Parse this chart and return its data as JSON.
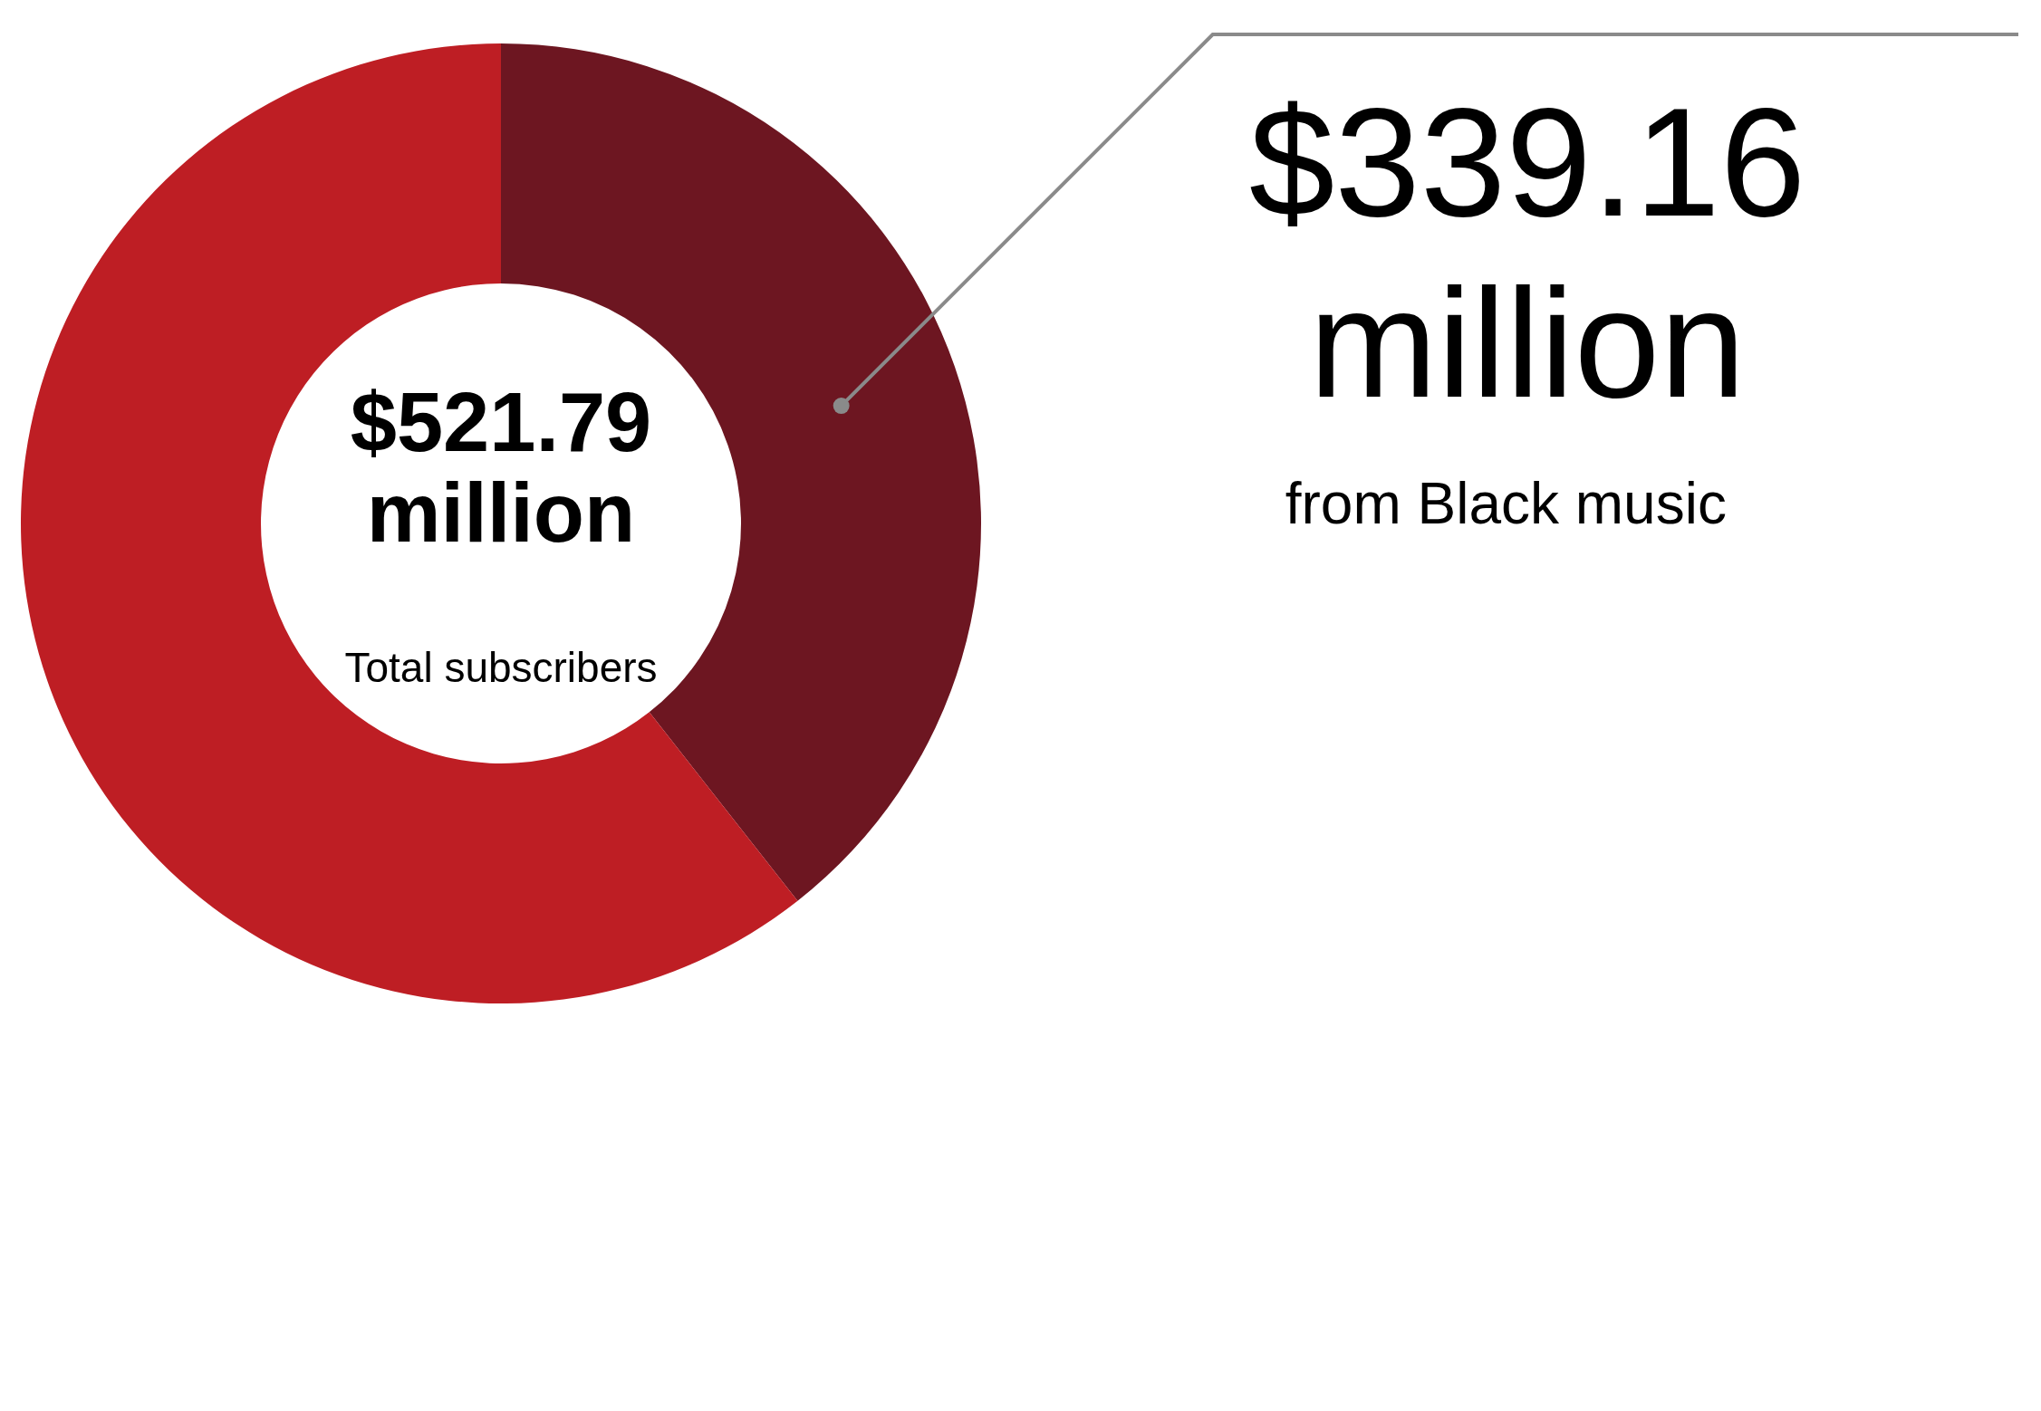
{
  "chart_data": {
    "type": "donut",
    "categories": [
      null,
      null
    ],
    "values": [
      39.4,
      60.6
    ],
    "colors": [
      "#6d1621",
      "#be1e24"
    ],
    "annotations": [
      "$521.79 million",
      "Total subscribers",
      "$339.16 million",
      "from Black music"
    ]
  }
}
